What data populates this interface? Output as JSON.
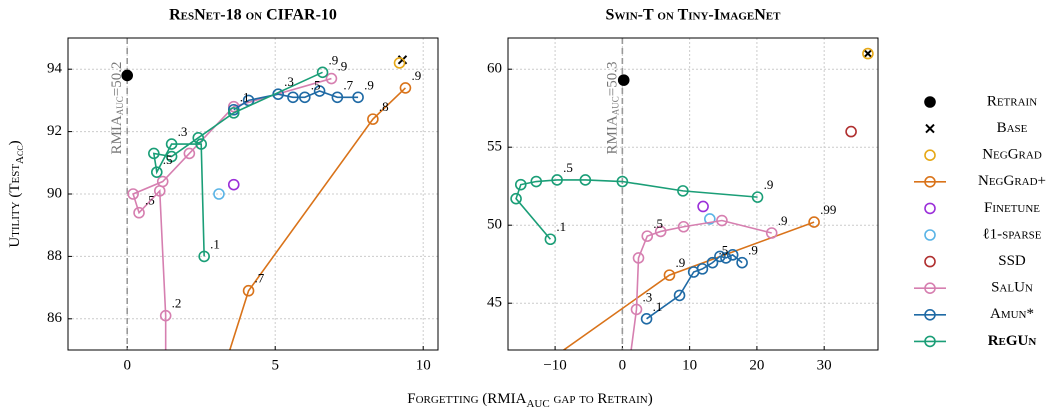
{
  "chart_data": [
    {
      "type": "line",
      "title": "ResNet-18 on CIFAR-10",
      "ylabel": {
        "text": "Utility (Test",
        "sub": "Acc",
        "rest": ")"
      },
      "xlim": [
        -2,
        10.5
      ],
      "ylim": [
        85,
        95
      ],
      "xticks": [
        0,
        5,
        10
      ],
      "yticks": [
        86,
        88,
        90,
        92,
        94
      ],
      "grid": true,
      "vline": {
        "x": 0,
        "text": "RMIA",
        "sub": "AUC",
        "rest": "=50.2"
      },
      "series": [
        {
          "entry": 0,
          "x": [
            0
          ],
          "y": [
            93.8
          ]
        },
        {
          "entry": 1,
          "x": [
            9.3
          ],
          "y": [
            94.3
          ]
        },
        {
          "entry": 2,
          "x": [
            9.2
          ],
          "y": [
            94.2
          ]
        },
        {
          "entry": 3,
          "x": [
            3.3,
            4.1,
            8.3,
            9.4
          ],
          "y": [
            84.5,
            86.9,
            92.4,
            93.4
          ],
          "point_labels": [
            null,
            ".7",
            ".8",
            ".9"
          ]
        },
        {
          "entry": 4,
          "x": [
            3.6
          ],
          "y": [
            90.3
          ]
        },
        {
          "entry": 5,
          "x": [
            3.1
          ],
          "y": [
            90.0
          ]
        },
        {
          "entry": 7,
          "x": [
            1.3,
            1.3,
            1.1,
            0.4,
            0.2,
            1.2,
            2.1,
            3.6,
            6.9
          ],
          "y": [
            84.5,
            86.1,
            90.1,
            89.4,
            90.0,
            90.4,
            91.3,
            92.8,
            93.7
          ],
          "point_labels": [
            null,
            ".2",
            null,
            ".5",
            null,
            null,
            null,
            null,
            ".9"
          ]
        },
        {
          "entry": 8,
          "x": [
            3.6,
            4.1,
            5.1,
            5.6,
            6.0,
            6.5,
            7.1,
            7.8
          ],
          "y": [
            92.7,
            93.0,
            93.2,
            93.1,
            93.1,
            93.3,
            93.1,
            93.1
          ],
          "point_labels": [
            ".1",
            null,
            ".3",
            null,
            ".5",
            null,
            ".7",
            ".9"
          ]
        },
        {
          "entry": 9,
          "x": [
            2.6,
            2.5,
            1.5,
            1.0,
            0.9,
            1.5,
            2.4,
            3.6,
            6.6
          ],
          "y": [
            88.0,
            91.6,
            91.6,
            90.7,
            91.3,
            91.2,
            91.8,
            92.6,
            93.9
          ],
          "point_labels": [
            ".1",
            null,
            ".3",
            ".5",
            null,
            null,
            null,
            null,
            ".9"
          ]
        }
      ]
    },
    {
      "type": "line",
      "title": "Swin-T on Tiny-ImageNet",
      "xlim": [
        -17,
        38
      ],
      "ylim": [
        42,
        62
      ],
      "xticks": [
        {
          "value": -10,
          "label": "−10"
        },
        0,
        10,
        20,
        30
      ],
      "yticks": [
        45,
        50,
        55,
        60
      ],
      "grid": true,
      "vline": {
        "x": 0,
        "text": "RMIA",
        "sub": "AUC",
        "rest": "=50.3"
      },
      "series": [
        {
          "entry": 0,
          "x": [
            0.2
          ],
          "y": [
            59.3
          ]
        },
        {
          "entry": 1,
          "x": [
            36.5
          ],
          "y": [
            61.0
          ]
        },
        {
          "entry": 2,
          "x": [
            36.5
          ],
          "y": [
            61.0
          ]
        },
        {
          "entry": 3,
          "x": [
            -12,
            7,
            28.5
          ],
          "y": [
            41,
            46.8,
            50.2
          ],
          "point_labels": [
            null,
            ".9",
            ".99"
          ]
        },
        {
          "entry": 4,
          "x": [
            12
          ],
          "y": [
            51.2
          ]
        },
        {
          "entry": 5,
          "x": [
            13
          ],
          "y": [
            50.4
          ]
        },
        {
          "entry": 6,
          "x": [
            34
          ],
          "y": [
            56
          ]
        },
        {
          "entry": 7,
          "x": [
            1,
            2.1,
            2.4,
            3.7,
            5.7,
            9.1,
            14.8,
            22.2
          ],
          "y": [
            41,
            44.6,
            47.9,
            49.3,
            49.6,
            49.9,
            50.3,
            49.5
          ],
          "point_labels": [
            null,
            ".3",
            null,
            ".5",
            null,
            null,
            null,
            ".9"
          ]
        },
        {
          "entry": 8,
          "x": [
            3.6,
            8.5,
            10.6,
            11.9,
            13.4,
            14.5,
            15.4,
            16.4,
            17.8
          ],
          "y": [
            44,
            45.5,
            47.0,
            47.2,
            47.6,
            48.0,
            47.9,
            48.1,
            47.6
          ],
          "point_labels": [
            ".1",
            null,
            null,
            null,
            ".5",
            null,
            null,
            null,
            ".9"
          ]
        },
        {
          "entry": 9,
          "x": [
            -10.7,
            -15.8,
            -15.1,
            -12.8,
            -9.7,
            -5.5,
            0,
            9,
            20.1
          ],
          "y": [
            49.1,
            51.7,
            52.6,
            52.8,
            52.9,
            52.9,
            52.8,
            52.2,
            51.8
          ],
          "point_labels": [
            ".1",
            null,
            null,
            null,
            ".5",
            null,
            null,
            null,
            ".9"
          ]
        }
      ]
    }
  ],
  "xlabel": {
    "text": "Forgetting (RMIA",
    "sub": "AUC",
    "rest": " gap to Retrain)"
  },
  "legend": [
    {
      "name": "Retrain",
      "color": "#000000",
      "marker": "filled",
      "style": "marker"
    },
    {
      "name": "Base",
      "color": "#000000",
      "marker": "x",
      "style": "marker"
    },
    {
      "name": "NegGrad",
      "color": "#e6a817",
      "marker": "circle",
      "style": "marker"
    },
    {
      "name": "NegGrad+",
      "color": "#d9731a",
      "marker": "circle",
      "style": "line"
    },
    {
      "name": "Finetune",
      "color": "#9b30d9",
      "marker": "circle",
      "style": "marker"
    },
    {
      "name": "ℓ1-sparse",
      "color": "#5ab4e6",
      "marker": "circle",
      "style": "marker"
    },
    {
      "name": "SSD",
      "color": "#b03030",
      "marker": "circle",
      "style": "marker"
    },
    {
      "name": "SalUn",
      "color": "#d67fb0",
      "marker": "circle",
      "style": "line"
    },
    {
      "name": "Amun*",
      "color": "#1f6aa5",
      "marker": "circle",
      "style": "line"
    },
    {
      "name": "ReGUn",
      "color": "#1a9e77",
      "marker": "circle",
      "style": "line",
      "bold": true
    }
  ]
}
